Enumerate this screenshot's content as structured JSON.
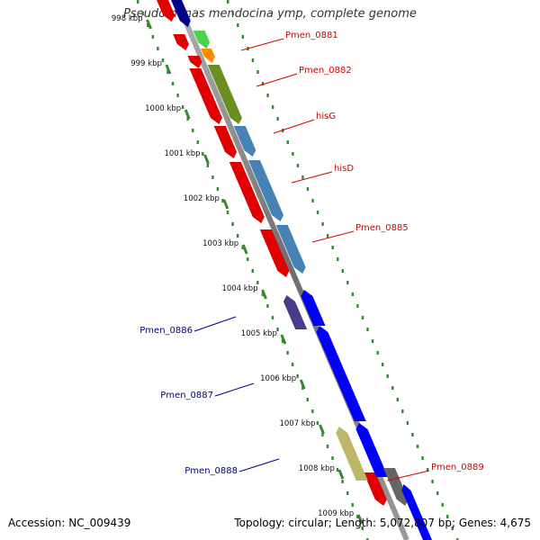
{
  "title": "Pseudomonas mendocina ymp, complete genome",
  "accession": "Accession: NC_009439",
  "summary": "Topology: circular; Length: 5,072,807 bp; Genes: 4,675",
  "colors": {
    "backbone": "#8c8c8c",
    "tick_dots": "#2e8b2e",
    "label_fwd": "#d40000",
    "label_rev": "#00008b"
  },
  "ruler": [
    "998 kbp",
    "999 kbp",
    "1000 kbp",
    "1001 kbp",
    "1002 kbp",
    "1003 kbp",
    "1004 kbp",
    "1005 kbp",
    "1006 kbp",
    "1007 kbp",
    "1008 kbp",
    "1009 kbp"
  ],
  "genes": [
    {
      "name": "Pmen_0881",
      "strand": "+",
      "color": "#4cd24c"
    },
    {
      "name": "Pmen_0882",
      "strand": "+",
      "color": "#6b8e23"
    },
    {
      "name": "hisG",
      "strand": "+",
      "color": "#4682b4"
    },
    {
      "name": "hisD",
      "strand": "+",
      "color": "#4682b4"
    },
    {
      "name": "Pmen_0885",
      "strand": "+",
      "color": "#4682b4"
    },
    {
      "name": "Pmen_0886",
      "strand": "-",
      "color": "#483d8b"
    },
    {
      "name": "Pmen_0887",
      "strand": "-",
      "color": "#0000ff"
    },
    {
      "name": "Pmen_0888",
      "strand": "-",
      "color": "#bdb76b"
    },
    {
      "name": "Pmen_0889",
      "strand": "+",
      "color": "#666666"
    }
  ]
}
